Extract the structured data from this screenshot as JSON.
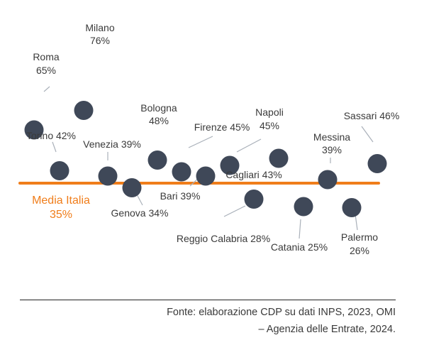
{
  "colors": {
    "dot": "#3f4858",
    "leader": "#a9b0b9",
    "average": "#f07d1a",
    "text": "#3a3a3a"
  },
  "chart_data": {
    "type": "scatter",
    "title": "",
    "xlabel": "",
    "ylabel": "",
    "grid": false,
    "legend": "none",
    "unit": "%",
    "reference_line": {
      "label": "Media Italia",
      "value": 35,
      "value_label": "35%"
    },
    "points": [
      {
        "name": "Roma",
        "value": 65,
        "value_label": "65%"
      },
      {
        "name": "Milano",
        "value": 76,
        "value_label": "76%"
      },
      {
        "name": "Torino",
        "value": 42,
        "value_label": "42%"
      },
      {
        "name": "Venezia",
        "value": 39,
        "value_label": "39%"
      },
      {
        "name": "Genova",
        "value": 34,
        "value_label": "34%"
      },
      {
        "name": "Bologna",
        "value": 48,
        "value_label": "48%"
      },
      {
        "name": "Firenze",
        "value": 45,
        "value_label": "45%"
      },
      {
        "name": "Bari",
        "value": 39,
        "value_label": "39%"
      },
      {
        "name": "Napoli",
        "value": 45,
        "value_label": "45%"
      },
      {
        "name": "Reggio Calabria",
        "value": 28,
        "value_label": "28%"
      },
      {
        "name": "Cagliari",
        "value": 43,
        "value_label": "43%"
      },
      {
        "name": "Catania",
        "value": 25,
        "value_label": "25%"
      },
      {
        "name": "Messina",
        "value": 39,
        "value_label": "39%"
      },
      {
        "name": "Palermo",
        "value": 26,
        "value_label": "26%"
      },
      {
        "name": "Sassari",
        "value": 46,
        "value_label": "46%"
      }
    ]
  },
  "source": {
    "line1": "Fonte: elaborazione CDP su dati INPS, 2023, OMI",
    "line2": "– Agenzia delle Entrate, 2024."
  }
}
